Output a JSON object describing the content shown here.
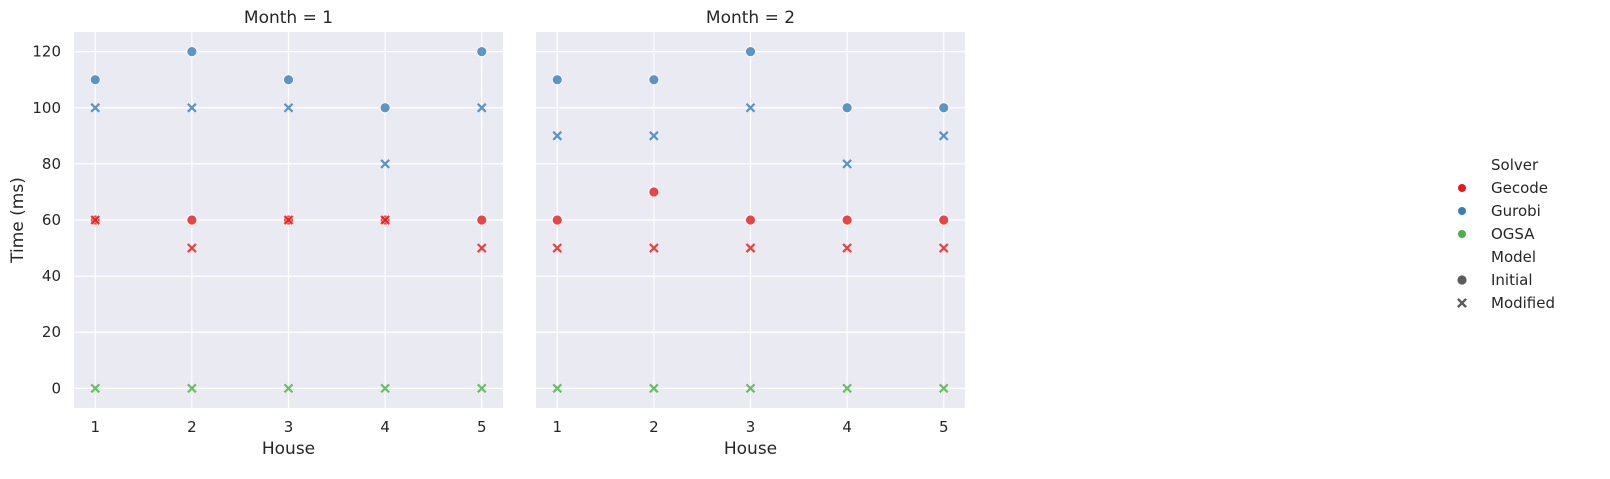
{
  "chart_data": {
    "type": "scatter",
    "ylabel": "Time (ms)",
    "xlabel": "House",
    "x": [
      1,
      2,
      3,
      4,
      5
    ],
    "xticks": [
      "1",
      "2",
      "3",
      "4",
      "5"
    ],
    "yticks": [
      "0",
      "20",
      "40",
      "60",
      "80",
      "100",
      "120"
    ],
    "ylim": [
      -7,
      127
    ],
    "xlim": [
      0.78,
      5.22
    ],
    "grid": true,
    "legend_position": "right",
    "colors": {
      "Gecode": "#e41a1c",
      "Gurobi": "#377eb8",
      "OGSA": "#4daf4a"
    },
    "panels": [
      {
        "title": "Month = 1",
        "series": [
          {
            "solver": "Gecode",
            "model": "Initial",
            "values": [
              60,
              60,
              60,
              60,
              60
            ]
          },
          {
            "solver": "Gecode",
            "model": "Modified",
            "values": [
              60,
              50,
              60,
              60,
              50
            ]
          },
          {
            "solver": "Gurobi",
            "model": "Initial",
            "values": [
              110,
              120,
              110,
              100,
              120
            ]
          },
          {
            "solver": "Gurobi",
            "model": "Modified",
            "values": [
              100,
              100,
              100,
              80,
              100
            ]
          },
          {
            "solver": "OGSA",
            "model": "Modified",
            "values": [
              0,
              0,
              0,
              0,
              0
            ]
          }
        ]
      },
      {
        "title": "Month = 2",
        "series": [
          {
            "solver": "Gecode",
            "model": "Initial",
            "values": [
              60,
              70,
              60,
              60,
              60
            ]
          },
          {
            "solver": "Gecode",
            "model": "Modified",
            "values": [
              50,
              50,
              50,
              50,
              50
            ]
          },
          {
            "solver": "Gurobi",
            "model": "Initial",
            "values": [
              110,
              110,
              120,
              100,
              100
            ]
          },
          {
            "solver": "Gurobi",
            "model": "Modified",
            "values": [
              90,
              90,
              100,
              80,
              90
            ]
          },
          {
            "solver": "OGSA",
            "model": "Modified",
            "values": [
              0,
              0,
              0,
              0,
              0
            ]
          }
        ]
      }
    ],
    "legend": {
      "hue_title": "Solver",
      "hue_items": [
        "Gecode",
        "Gurobi",
        "OGSA"
      ],
      "style_title": "Model",
      "style_items": [
        "Initial",
        "Modified"
      ]
    }
  }
}
